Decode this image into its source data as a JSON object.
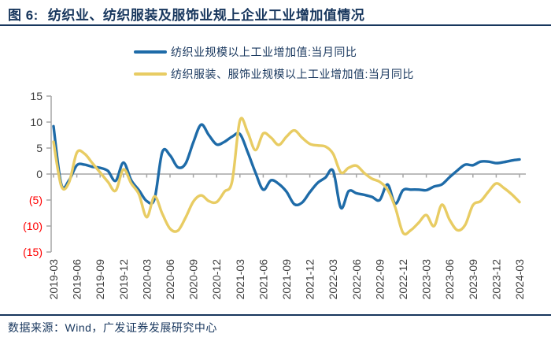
{
  "header": {
    "figure_label": "图 6:",
    "title": "纺织业、纺织服装及服饰业规上企业工业增加值情况"
  },
  "legend": {
    "items": [
      {
        "label": "纺织业规模以上工业增加值:当月同比"
      },
      {
        "label": "纺织服装、服饰业规模以上工业增加值:当月同比"
      }
    ]
  },
  "footer": {
    "source": "数据来源：Wind，广发证券发展研究中心"
  },
  "chart_data": {
    "type": "line",
    "title": "纺织业、纺织服装及服饰业规上企业工业增加值情况",
    "unit": "%",
    "grid": false,
    "legend_position": "top",
    "ylim": [
      -15,
      15
    ],
    "y_ticks": [
      15,
      10,
      5,
      0,
      -5,
      -10,
      -15
    ],
    "y_tick_labels": [
      "15",
      "10",
      "5",
      "0",
      "(5)",
      "(10)",
      "(15)"
    ],
    "x_tick_labels": [
      "2019-03",
      "2019-06",
      "2019-09",
      "2019-12",
      "2020-03",
      "2020-06",
      "2020-09",
      "2020-12",
      "2021-03",
      "2021-06",
      "2021-09",
      "2021-12",
      "2022-03",
      "2022-06",
      "2022-09",
      "2022-12",
      "2023-03",
      "2023-06",
      "2023-09",
      "2023-12",
      "2024-03"
    ],
    "x": [
      "2019-03",
      "2019-04",
      "2019-05",
      "2019-06",
      "2019-07",
      "2019-08",
      "2019-09",
      "2019-10",
      "2019-11",
      "2019-12",
      "2020-01",
      "2020-02",
      "2020-03",
      "2020-04",
      "2020-05",
      "2020-06",
      "2020-07",
      "2020-08",
      "2020-09",
      "2020-10",
      "2020-11",
      "2020-12",
      "2021-01",
      "2021-02",
      "2021-03",
      "2021-04",
      "2021-05",
      "2021-06",
      "2021-07",
      "2021-08",
      "2021-09",
      "2021-10",
      "2021-11",
      "2021-12",
      "2022-01",
      "2022-02",
      "2022-03",
      "2022-04",
      "2022-05",
      "2022-06",
      "2022-07",
      "2022-08",
      "2022-09",
      "2022-10",
      "2022-11",
      "2022-12",
      "2023-01",
      "2023-02",
      "2023-03",
      "2023-04",
      "2023-05",
      "2023-06",
      "2023-07",
      "2023-08",
      "2023-09",
      "2023-10",
      "2023-11",
      "2023-12",
      "2024-01",
      "2024-02",
      "2024-03"
    ],
    "series": [
      {
        "name": "纺织业规模以上工业增加值:当月同比",
        "color": "#1E6BA8",
        "values": [
          9.2,
          -2.0,
          -1.2,
          1.7,
          1.8,
          1.4,
          1.2,
          0.6,
          -1.3,
          2.2,
          -1.2,
          -3.1,
          -5.2,
          -4.8,
          4.2,
          3.6,
          1.3,
          2.0,
          6.1,
          9.5,
          7.5,
          5.7,
          6.2,
          7.2,
          7.7,
          4.2,
          0.3,
          -3.0,
          -1.2,
          -1.9,
          -3.4,
          -5.8,
          -5.5,
          -3.5,
          -1.7,
          -0.7,
          0.6,
          -6.5,
          -3.3,
          -3.7,
          -4.0,
          -4.4,
          -5.0,
          -2.0,
          -5.7,
          -3.1,
          -3.0,
          -3.0,
          -3.1,
          -2.4,
          -2.0,
          -0.6,
          0.7,
          1.8,
          1.7,
          2.4,
          2.4,
          2.1,
          2.3,
          2.6,
          2.8
        ]
      },
      {
        "name": "纺织服装、服饰业规模以上工业增加值:当月同比",
        "color": "#E8CC63",
        "values": [
          6.2,
          -2.3,
          -1.6,
          4.1,
          3.9,
          2.1,
          0.3,
          -1.5,
          -3.2,
          0.9,
          -1.8,
          -3.9,
          -8.3,
          -4.3,
          -7.6,
          -10.5,
          -10.9,
          -8.4,
          -5.3,
          -4.1,
          -5.2,
          -5.4,
          -3.4,
          -1.4,
          10.3,
          8.0,
          4.6,
          7.8,
          7.0,
          5.6,
          7.2,
          8.4,
          7.0,
          5.8,
          5.5,
          5.3,
          3.9,
          0.3,
          1.2,
          1.6,
          0.2,
          -0.9,
          -1.5,
          -3.0,
          -6.4,
          -11.3,
          -10.8,
          -9.4,
          -7.9,
          -10.0,
          -5.9,
          -8.8,
          -10.8,
          -9.8,
          -6.0,
          -5.2,
          -3.4,
          -1.8,
          -2.7,
          -3.9,
          -5.4
        ]
      }
    ],
    "colors": {
      "axis": "#A6A6A6",
      "tick_label": "#404040",
      "negative_tick_label": "#FF0000",
      "title": "#17365D"
    }
  }
}
